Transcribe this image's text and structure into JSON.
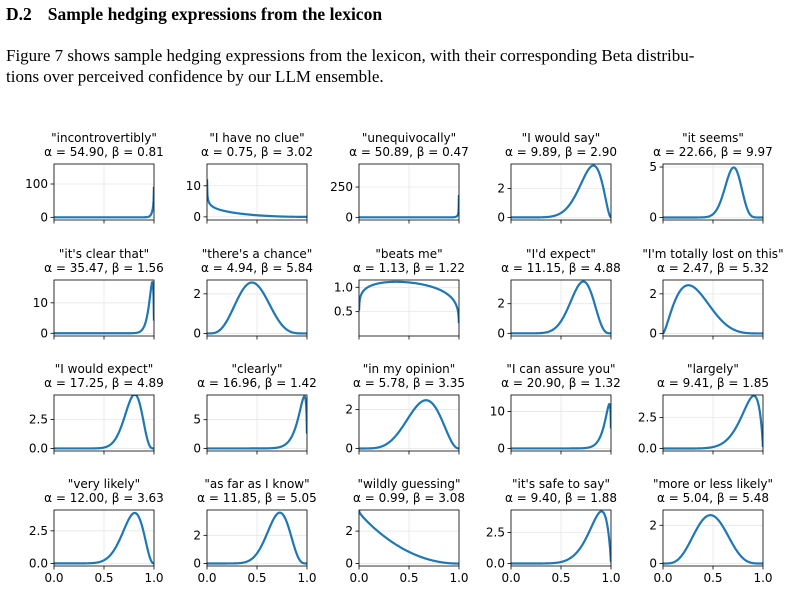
{
  "section": {
    "number": "D.2",
    "title": "Sample hedging expressions from the lexicon"
  },
  "paragraph": {
    "line1": "Figure 7 shows sample hedging expressions from the lexicon, with their corresponding Beta distribu-",
    "line2": "tions over perceived confidence by our LLM ensemble."
  },
  "chart_data": [
    {
      "type": "line",
      "title": "\"incontrovertibly\"",
      "subtitle": "α = 54.90, β = 0.81",
      "alpha": 54.9,
      "beta": 0.81,
      "yticks": [
        0,
        100
      ],
      "ylim": [
        -8,
        160
      ],
      "xlim": [
        0,
        1
      ]
    },
    {
      "type": "line",
      "title": "\"I have no clue\"",
      "subtitle": "α = 0.75, β = 3.02",
      "alpha": 0.75,
      "beta": 3.02,
      "yticks": [
        0,
        10
      ],
      "ylim": [
        -1,
        17
      ],
      "xlim": [
        0,
        1
      ]
    },
    {
      "type": "line",
      "title": "\"unequivocally\"",
      "subtitle": "α = 50.89, β = 0.47",
      "alpha": 50.89,
      "beta": 0.47,
      "yticks": [
        0,
        250
      ],
      "ylim": [
        -22,
        440
      ],
      "xlim": [
        0,
        1
      ]
    },
    {
      "type": "line",
      "title": "\"I would say\"",
      "subtitle": "α = 9.89, β = 2.90",
      "alpha": 9.89,
      "beta": 2.9,
      "yticks": [
        0,
        2
      ],
      "ylim": [
        -0.18,
        3.7
      ],
      "xlim": [
        0,
        1
      ]
    },
    {
      "type": "line",
      "title": "\"it seems\"",
      "subtitle": "α = 22.66, β = 9.97",
      "alpha": 22.66,
      "beta": 9.97,
      "yticks": [
        0,
        5
      ],
      "ylim": [
        -0.25,
        5.3
      ],
      "xlim": [
        0,
        1
      ]
    },
    {
      "type": "line",
      "title": "\"it's clear that\"",
      "subtitle": "α = 35.47, β = 1.56",
      "alpha": 35.47,
      "beta": 1.56,
      "yticks": [
        0,
        10
      ],
      "ylim": [
        -0.9,
        17.5
      ],
      "xlim": [
        0,
        1
      ]
    },
    {
      "type": "line",
      "title": "\"there's a chance\"",
      "subtitle": "α = 4.94, β = 5.84",
      "alpha": 4.94,
      "beta": 5.84,
      "yticks": [
        0,
        2
      ],
      "ylim": [
        -0.13,
        2.7
      ],
      "xlim": [
        0,
        1
      ]
    },
    {
      "type": "line",
      "title": "\"beats me\"",
      "subtitle": "α = 1.13, β = 1.22",
      "alpha": 1.13,
      "beta": 1.22,
      "yticks": [
        0.5,
        1.0
      ],
      "ylim": [
        0,
        1.15
      ],
      "xlim": [
        0,
        1
      ]
    },
    {
      "type": "line",
      "title": "\"I'd expect\"",
      "subtitle": "α = 11.15, β = 4.88",
      "alpha": 11.15,
      "beta": 4.88,
      "yticks": [
        0,
        2
      ],
      "ylim": [
        -0.18,
        3.6
      ],
      "xlim": [
        0,
        1
      ]
    },
    {
      "type": "line",
      "title": "\"I'm totally lost on this\"",
      "subtitle": "α = 2.47, β = 5.32",
      "alpha": 2.47,
      "beta": 5.32,
      "yticks": [
        0,
        2
      ],
      "ylim": [
        -0.13,
        2.7
      ],
      "xlim": [
        0,
        1
      ]
    },
    {
      "type": "line",
      "title": "\"I would expect\"",
      "subtitle": "α = 17.25, β = 4.89",
      "alpha": 17.25,
      "beta": 4.89,
      "yticks": [
        0.0,
        2.5
      ],
      "ylim": [
        -0.22,
        4.6
      ],
      "xlim": [
        0,
        1
      ]
    },
    {
      "type": "line",
      "title": "\"clearly\"",
      "subtitle": "α = 16.96, β = 1.42",
      "alpha": 16.96,
      "beta": 1.42,
      "yticks": [
        0,
        5
      ],
      "ylim": [
        -0.45,
        9.3
      ],
      "xlim": [
        0,
        1
      ]
    },
    {
      "type": "line",
      "title": "\"in my opinion\"",
      "subtitle": "α = 5.78, β = 3.35",
      "alpha": 5.78,
      "beta": 3.35,
      "yticks": [
        0,
        2
      ],
      "ylim": [
        -0.13,
        2.75
      ],
      "xlim": [
        0,
        1
      ]
    },
    {
      "type": "line",
      "title": "\"I can assure you\"",
      "subtitle": "α = 20.90, β = 1.32",
      "alpha": 20.9,
      "beta": 1.32,
      "yticks": [
        0,
        10
      ],
      "ylim": [
        -0.7,
        14.5
      ],
      "xlim": [
        0,
        1
      ]
    },
    {
      "type": "line",
      "title": "\"largely\"",
      "subtitle": "α = 9.41, β = 1.85",
      "alpha": 9.41,
      "beta": 1.85,
      "yticks": [
        0.0,
        2.5
      ],
      "ylim": [
        -0.2,
        4.3
      ],
      "xlim": [
        0,
        1
      ]
    },
    {
      "type": "line",
      "title": "\"very likely\"",
      "subtitle": "α = 12.00, β = 3.63",
      "alpha": 12.0,
      "beta": 3.63,
      "yticks": [
        0.0,
        2.5
      ],
      "ylim": [
        -0.2,
        4.1
      ],
      "xlim": [
        0,
        1
      ]
    },
    {
      "type": "line",
      "title": "\"as far as I know\"",
      "subtitle": "α = 11.85, β = 5.05",
      "alpha": 11.85,
      "beta": 5.05,
      "yticks": [
        0,
        2
      ],
      "ylim": [
        -0.18,
        3.8
      ],
      "xlim": [
        0,
        1
      ]
    },
    {
      "type": "line",
      "title": "\"wildly guessing\"",
      "subtitle": "α = 0.99, β = 3.08",
      "alpha": 0.99,
      "beta": 3.08,
      "yticks": [
        0,
        2
      ],
      "ylim": [
        -0.15,
        3.3
      ],
      "xlim": [
        0,
        1
      ]
    },
    {
      "type": "line",
      "title": "\"it's safe to say\"",
      "subtitle": "α = 9.40, β = 1.88",
      "alpha": 9.4,
      "beta": 1.88,
      "yticks": [
        0.0,
        2.5
      ],
      "ylim": [
        -0.2,
        4.3
      ],
      "xlim": [
        0,
        1
      ]
    },
    {
      "type": "line",
      "title": "\"more or less likely\"",
      "subtitle": "α = 5.04, β = 5.48",
      "alpha": 5.04,
      "beta": 5.48,
      "yticks": [
        0,
        2
      ],
      "ylim": [
        -0.13,
        2.8
      ],
      "xlim": [
        0,
        1
      ]
    }
  ],
  "xticks": [
    "0.0",
    "0.5",
    "1.0"
  ],
  "line_color": "#1f77b4",
  "grid_color": "#e6e6e6"
}
